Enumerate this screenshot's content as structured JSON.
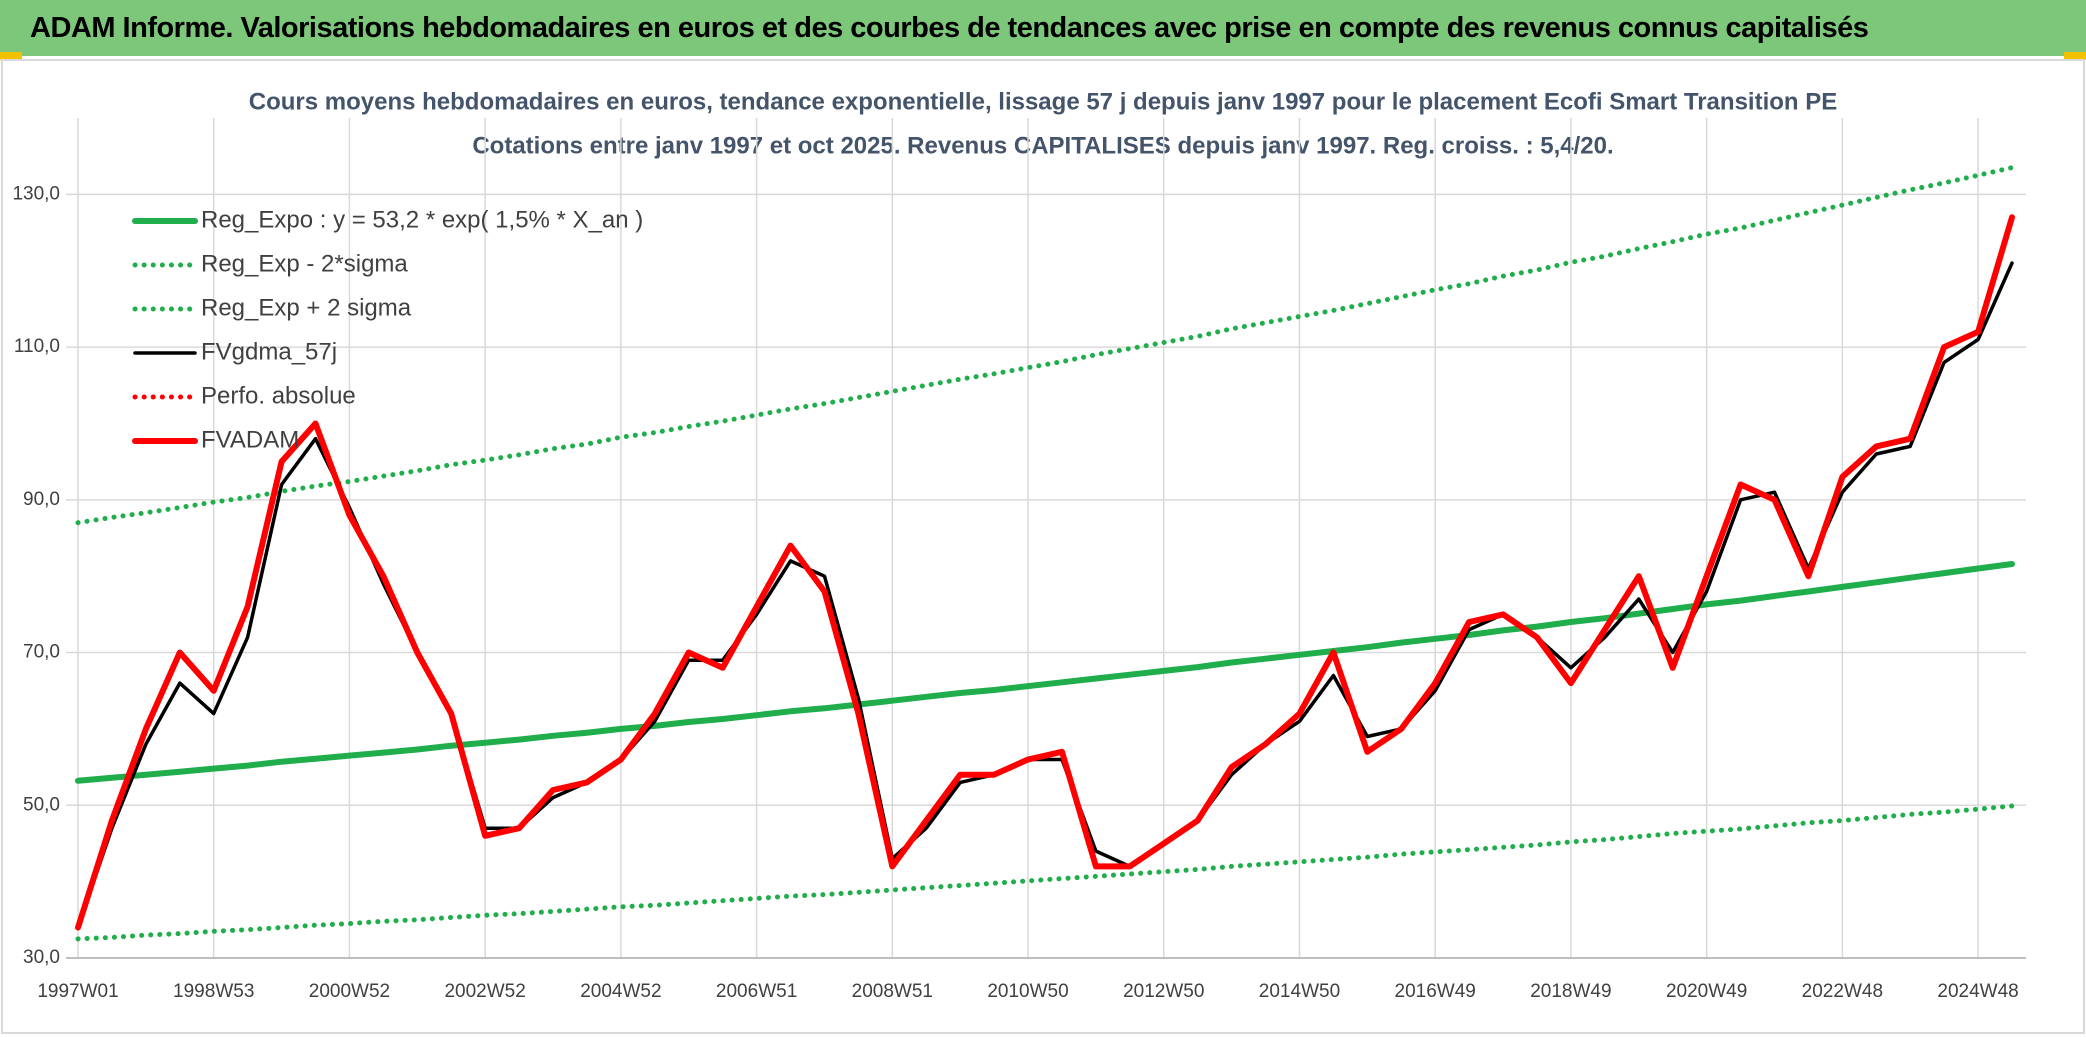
{
  "banner": "ADAM Informe. Valorisations hebdomadaires en euros et des courbes de tendances avec prise en compte des revenus connus capitalisés",
  "chart_data": {
    "type": "line",
    "title": "Cours moyens hebdomadaires en euros, tendance exponentielle, lissage 57 j depuis janv 1997 pour le placement Ecofi Smart Transition PE",
    "subtitle": "Cotations entre janv 1997 et oct 2025. Revenus CAPITALISES depuis janv 1997. Reg. croiss. : 5,4/20.",
    "categories": [
      "1997W01",
      null,
      null,
      null,
      "1998W53",
      null,
      null,
      null,
      "2000W52",
      null,
      null,
      null,
      "2002W52",
      null,
      null,
      null,
      "2004W52",
      null,
      null,
      null,
      "2006W51",
      null,
      null,
      null,
      "2008W51",
      null,
      null,
      null,
      "2010W50",
      null,
      null,
      null,
      "2012W50",
      null,
      null,
      null,
      "2014W50",
      null,
      null,
      null,
      "2016W49",
      null,
      null,
      null,
      "2018W49",
      null,
      null,
      null,
      "2020W49",
      null,
      null,
      null,
      "2022W48",
      null,
      null,
      null,
      "2024W48",
      null
    ],
    "ylim": [
      30,
      140
    ],
    "yticks": [
      {
        "value": 30,
        "label": "30,0"
      },
      {
        "value": 50,
        "label": "50,0"
      },
      {
        "value": 70,
        "label": "70,0"
      },
      {
        "value": 90,
        "label": "90,0"
      },
      {
        "value": 110,
        "label": "110,0"
      },
      {
        "value": 130,
        "label": "130,0"
      }
    ],
    "grid": true,
    "legend": "top-left",
    "series": [
      {
        "name": "Reg_Expo : y = 53,2 * exp( 1,5% *  X_an )",
        "color": "#1fae4b",
        "style": "solid",
        "values": [
          53.2,
          53.6,
          54.0,
          54.4,
          54.8,
          55.2,
          55.7,
          56.1,
          56.5,
          56.9,
          57.3,
          57.8,
          58.2,
          58.6,
          59.1,
          59.5,
          60.0,
          60.4,
          60.9,
          61.3,
          61.8,
          62.3,
          62.7,
          63.2,
          63.7,
          64.2,
          64.7,
          65.1,
          65.6,
          66.1,
          66.6,
          67.1,
          67.6,
          68.1,
          68.7,
          69.2,
          69.7,
          70.2,
          70.7,
          71.3,
          71.8,
          72.3,
          72.9,
          73.4,
          74.0,
          74.5,
          75.1,
          75.7,
          76.3,
          76.8,
          77.4,
          78.0,
          78.6,
          79.2,
          79.8,
          80.4,
          81.0,
          81.6
        ]
      },
      {
        "name": "Reg_Exp - 2*sigma",
        "color": "#1fae4b",
        "style": "dotted",
        "values": [
          32.5,
          32.7,
          33.0,
          33.2,
          33.5,
          33.7,
          34.0,
          34.3,
          34.5,
          34.8,
          35.0,
          35.3,
          35.6,
          35.8,
          36.1,
          36.4,
          36.7,
          36.9,
          37.2,
          37.5,
          37.8,
          38.1,
          38.3,
          38.6,
          38.9,
          39.2,
          39.5,
          39.8,
          40.1,
          40.4,
          40.7,
          41.0,
          41.3,
          41.6,
          42.0,
          42.3,
          42.6,
          42.9,
          43.2,
          43.6,
          43.9,
          44.2,
          44.5,
          44.8,
          45.2,
          45.5,
          45.9,
          46.3,
          46.6,
          46.9,
          47.3,
          47.7,
          48.0,
          48.4,
          48.8,
          49.1,
          49.5,
          49.9
        ]
      },
      {
        "name": "Reg_Exp + 2 sigma",
        "color": "#1fae4b",
        "style": "dotted",
        "values": [
          87.0,
          87.7,
          88.3,
          89.0,
          89.7,
          90.3,
          91.1,
          91.8,
          92.4,
          93.1,
          93.8,
          94.6,
          95.2,
          95.9,
          96.7,
          97.3,
          98.2,
          98.8,
          99.6,
          100.3,
          101.1,
          101.9,
          102.6,
          103.4,
          104.2,
          105.0,
          105.8,
          106.5,
          107.3,
          108.1,
          109.0,
          109.8,
          110.6,
          111.4,
          112.4,
          113.2,
          114.0,
          114.8,
          115.7,
          116.6,
          117.5,
          118.3,
          119.3,
          120.1,
          121.1,
          121.9,
          122.9,
          123.8,
          124.8,
          125.6,
          126.6,
          127.6,
          128.6,
          129.6,
          130.6,
          131.5,
          132.5,
          133.5
        ]
      },
      {
        "name": "FVgdma_57j",
        "color": "#000000",
        "style": "solid",
        "values": [
          34,
          47,
          58,
          66,
          62,
          72,
          92,
          98,
          89,
          79,
          70,
          62,
          47,
          47,
          51,
          53,
          56,
          61,
          69,
          69,
          75,
          82,
          80,
          64,
          43,
          47,
          53,
          54,
          56,
          56,
          44,
          42,
          45,
          48,
          54,
          58,
          61,
          67,
          59,
          60,
          65,
          73,
          75,
          72,
          68,
          72,
          77,
          70,
          78,
          90,
          91,
          81,
          91,
          96,
          97,
          108,
          111,
          121
        ]
      },
      {
        "name": "Perfo. absolue",
        "color": "#ff0000",
        "style": "dotted",
        "values": [
          34,
          48,
          60,
          70,
          65,
          76,
          95,
          100,
          88,
          80,
          70,
          62,
          46,
          47,
          52,
          53,
          56,
          62,
          70,
          68,
          76,
          84,
          78,
          62,
          42,
          48,
          54,
          54,
          56,
          57,
          42,
          42,
          45,
          48,
          55,
          58,
          62,
          70,
          57,
          60,
          66,
          74,
          75,
          72,
          66,
          73,
          80,
          68,
          80,
          92,
          90,
          80,
          93,
          97,
          98,
          110,
          112,
          127
        ]
      },
      {
        "name": "FVADAM",
        "color": "#ff0000",
        "style": "solid",
        "values": [
          34,
          48,
          60,
          70,
          65,
          76,
          95,
          100,
          88,
          80,
          70,
          62,
          46,
          47,
          52,
          53,
          56,
          62,
          70,
          68,
          76,
          84,
          78,
          62,
          42,
          48,
          54,
          54,
          56,
          57,
          42,
          42,
          45,
          48,
          55,
          58,
          62,
          70,
          57,
          60,
          66,
          74,
          75,
          72,
          66,
          73,
          80,
          68,
          80,
          92,
          90,
          80,
          93,
          97,
          98,
          110,
          112,
          127
        ]
      }
    ]
  }
}
